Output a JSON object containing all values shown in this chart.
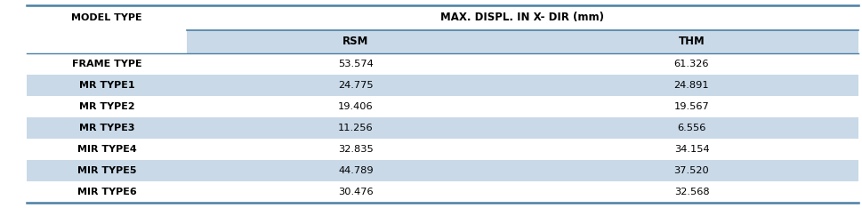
{
  "col_header_main": "MAX. DISPL. IN X- DIR (mm)",
  "col_header_left": "MODEL TYPE",
  "sub_headers": [
    "RSM",
    "THM"
  ],
  "rows": [
    {
      "label": "FRAME TYPE",
      "rsm": "53.574",
      "thm": "61.326",
      "shaded": false
    },
    {
      "label": "MR TYPE1",
      "rsm": "24.775",
      "thm": "24.891",
      "shaded": true
    },
    {
      "label": "MR TYPE2",
      "rsm": "19.406",
      "thm": "19.567",
      "shaded": false
    },
    {
      "label": "MR TYPE3",
      "rsm": "11.256",
      "thm": "6.556",
      "shaded": true
    },
    {
      "label": "MIR TYPE4",
      "rsm": "32.835",
      "thm": "34.154",
      "shaded": false
    },
    {
      "label": "MIR TYPE5",
      "rsm": "44.789",
      "thm": "37.520",
      "shaded": true
    },
    {
      "label": "MIR TYPE6",
      "rsm": "30.476",
      "thm": "32.568",
      "shaded": false
    }
  ],
  "shaded_color": "#c9d9e8",
  "header_color": "#c9d9e8",
  "border_color": "#4a7fa5",
  "text_color": "#000000",
  "bg_color": "#ffffff",
  "figsize": [
    9.7,
    2.34
  ],
  "dpi": 100
}
